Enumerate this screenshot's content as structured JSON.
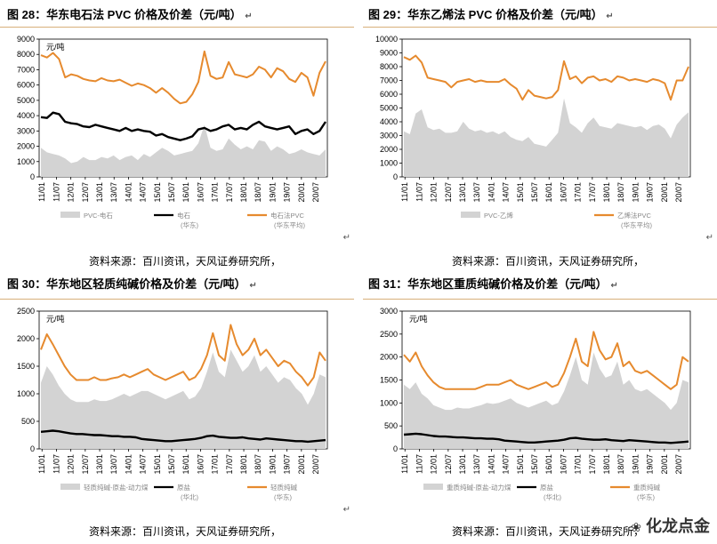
{
  "return_mark": "↵",
  "watermark": "化龙点金",
  "chart_data": [
    {
      "type": "line",
      "title": "图 28：华东电石法 PVC 价格及价差（元/吨）",
      "unit_label": "元/吨",
      "source": "资料来源：百川资讯，天风证券研究所，",
      "ylim": [
        0,
        9000
      ],
      "yticks": [
        0,
        1000,
        2000,
        3000,
        4000,
        5000,
        6000,
        7000,
        8000,
        9000
      ],
      "xticks": [
        "11/01",
        "11/07",
        "12/01",
        "12/07",
        "13/01",
        "13/07",
        "14/01",
        "14/07",
        "15/01",
        "15/07",
        "16/01",
        "16/07",
        "17/01",
        "17/07",
        "18/01",
        "18/07",
        "19/01",
        "19/07",
        "20/01",
        "20/07"
      ],
      "legend": [
        {
          "name": "PVC-电石",
          "sub": "",
          "kind": "area",
          "color": "#d3d3d3"
        },
        {
          "name": "电石",
          "sub": "(华东)",
          "kind": "line",
          "color": "#000000"
        },
        {
          "name": "电石法PVC",
          "sub": "(华东平均)",
          "kind": "line",
          "color": "#e68a2e"
        }
      ],
      "series": [
        {
          "kind": "line",
          "color": "#e68a2e",
          "values": [
            7950,
            7800,
            8100,
            7700,
            6500,
            6700,
            6600,
            6400,
            6300,
            6250,
            6450,
            6300,
            6250,
            6350,
            6150,
            5950,
            6100,
            6000,
            5800,
            5500,
            5800,
            5500,
            5100,
            4800,
            4900,
            5400,
            6200,
            8200,
            6600,
            6400,
            6500,
            7500,
            6700,
            6600,
            6500,
            6700,
            7200,
            7000,
            6500,
            7100,
            6900,
            6400,
            6200,
            6800,
            6500,
            5300,
            6800,
            7550
          ]
        },
        {
          "kind": "line",
          "color": "#000000",
          "values": [
            3900,
            3850,
            4200,
            4100,
            3600,
            3500,
            3450,
            3300,
            3250,
            3400,
            3300,
            3200,
            3100,
            3000,
            3200,
            3000,
            3100,
            3000,
            2950,
            2700,
            2800,
            2600,
            2500,
            2400,
            2500,
            2650,
            3100,
            3200,
            3000,
            3100,
            3300,
            3400,
            3100,
            3200,
            3100,
            3400,
            3600,
            3300,
            3200,
            3100,
            3200,
            3300,
            2800,
            3000,
            3100,
            2800,
            3000,
            3600
          ]
        },
        {
          "kind": "area",
          "color": "#d3d3d3",
          "values": [
            1900,
            1600,
            1500,
            1400,
            1200,
            900,
            1000,
            1300,
            1100,
            1100,
            1300,
            1200,
            1400,
            1100,
            1300,
            1400,
            1100,
            1500,
            1300,
            1600,
            1900,
            1700,
            1400,
            1500,
            1600,
            1700,
            2200,
            3400,
            1900,
            1700,
            1800,
            2500,
            2100,
            1800,
            2000,
            1800,
            2400,
            2300,
            1700,
            2000,
            1800,
            1500,
            1600,
            1800,
            1600,
            1500,
            1400,
            1800
          ]
        }
      ]
    },
    {
      "type": "line",
      "title": "图 29：华东乙烯法 PVC 价格及价差（元/吨）",
      "unit_label": "",
      "source": "资料来源：百川资讯，天风证券研究所，",
      "ylim": [
        0,
        10000
      ],
      "yticks": [
        0,
        1000,
        2000,
        3000,
        4000,
        5000,
        6000,
        7000,
        8000,
        9000,
        10000
      ],
      "xticks": [
        "11/01",
        "11/07",
        "12/01",
        "12/07",
        "13/01",
        "13/07",
        "14/01",
        "14/07",
        "15/01",
        "15/07",
        "16/01",
        "16/07",
        "17/01",
        "17/07",
        "18/01",
        "18/07",
        "19/01",
        "19/07",
        "20/01",
        "20/07"
      ],
      "legend": [
        {
          "name": "PVC-乙烯",
          "sub": "",
          "kind": "area",
          "color": "#d3d3d3"
        },
        {
          "name": "乙烯法PVC",
          "sub": "(华东平均)",
          "kind": "line",
          "color": "#e68a2e"
        }
      ],
      "series": [
        {
          "kind": "line",
          "color": "#e68a2e",
          "values": [
            8700,
            8500,
            8800,
            8300,
            7200,
            7100,
            7000,
            6900,
            6500,
            6900,
            7000,
            7100,
            6900,
            7000,
            6900,
            6900,
            6900,
            7100,
            6700,
            6400,
            5600,
            6300,
            5900,
            5800,
            5700,
            5800,
            6300,
            8400,
            7100,
            7300,
            6800,
            7200,
            7300,
            7000,
            7100,
            6900,
            7300,
            7200,
            7000,
            7100,
            7000,
            6900,
            7100,
            7000,
            6800,
            5600,
            7000,
            7000,
            8000
          ]
        },
        {
          "kind": "area",
          "color": "#d3d3d3",
          "values": [
            3300,
            3100,
            4600,
            4900,
            3600,
            3400,
            3500,
            3200,
            3200,
            3300,
            4000,
            3500,
            3300,
            3400,
            3200,
            3300,
            3100,
            3300,
            2900,
            2700,
            2600,
            2900,
            2400,
            2300,
            2200,
            2700,
            3200,
            5700,
            3900,
            3600,
            3200,
            3900,
            4300,
            3700,
            3600,
            3500,
            3900,
            3800,
            3700,
            3600,
            3700,
            3400,
            3700,
            3800,
            3500,
            2800,
            3800,
            4300,
            4700
          ]
        }
      ]
    },
    {
      "type": "line",
      "title": "图 30：华东地区轻质纯碱价格及价差（元/吨）",
      "unit_label": "元/吨",
      "source": "资料来源：百川资讯，天风证券研究所，",
      "ylim": [
        0,
        2500
      ],
      "yticks": [
        0,
        500,
        1000,
        1500,
        2000,
        2500
      ],
      "xticks": [
        "11/01",
        "11/07",
        "12/01",
        "12/07",
        "13/01",
        "13/07",
        "14/01",
        "14/07",
        "15/01",
        "15/07",
        "16/01",
        "16/07",
        "17/01",
        "17/07",
        "18/01",
        "18/07",
        "19/01",
        "19/07",
        "20/01",
        "20/07"
      ],
      "legend": [
        {
          "name": "轻质纯碱-原盐-动力煤",
          "sub": "",
          "kind": "area",
          "color": "#d3d3d3"
        },
        {
          "name": "原盐",
          "sub": "(华北)",
          "kind": "line",
          "color": "#000000"
        },
        {
          "name": "轻质纯碱",
          "sub": "(华东)",
          "kind": "line",
          "color": "#e68a2e"
        }
      ],
      "series": [
        {
          "kind": "line",
          "color": "#e68a2e",
          "values": [
            1800,
            2080,
            1900,
            1700,
            1500,
            1350,
            1250,
            1250,
            1250,
            1300,
            1250,
            1250,
            1280,
            1300,
            1350,
            1300,
            1350,
            1400,
            1450,
            1350,
            1300,
            1250,
            1300,
            1350,
            1400,
            1250,
            1300,
            1450,
            1700,
            2100,
            1700,
            1600,
            2250,
            1900,
            1700,
            1800,
            2000,
            1700,
            1800,
            1650,
            1500,
            1600,
            1550,
            1400,
            1300,
            1150,
            1300,
            1750,
            1600
          ]
        },
        {
          "kind": "line",
          "color": "#000000",
          "values": [
            310,
            320,
            330,
            320,
            300,
            280,
            270,
            270,
            260,
            250,
            250,
            240,
            230,
            230,
            220,
            220,
            210,
            180,
            170,
            160,
            150,
            140,
            140,
            150,
            160,
            170,
            180,
            200,
            230,
            240,
            220,
            210,
            200,
            200,
            210,
            190,
            180,
            170,
            190,
            180,
            170,
            160,
            150,
            140,
            140,
            130,
            140,
            150,
            160
          ]
        },
        {
          "kind": "area",
          "color": "#d3d3d3",
          "values": [
            1200,
            1500,
            1350,
            1150,
            1000,
            900,
            850,
            850,
            850,
            900,
            870,
            870,
            900,
            950,
            1000,
            950,
            1000,
            1050,
            1050,
            1000,
            950,
            900,
            950,
            1000,
            1050,
            900,
            950,
            1100,
            1400,
            1750,
            1400,
            1300,
            1800,
            1600,
            1400,
            1500,
            1700,
            1400,
            1500,
            1350,
            1200,
            1300,
            1250,
            1100,
            1000,
            800,
            1000,
            1350,
            1300
          ]
        }
      ]
    },
    {
      "type": "line",
      "title": "图 31：华东地区重质纯碱价格及价差（元/吨）",
      "unit_label": "元/吨",
      "source": "资料来源：百川资讯，天风证券研究所，",
      "ylim": [
        0,
        3000
      ],
      "yticks": [
        0,
        500,
        1000,
        1500,
        2000,
        2500,
        3000
      ],
      "xticks": [
        "11/01",
        "11/07",
        "12/01",
        "12/07",
        "13/01",
        "13/07",
        "14/01",
        "14/07",
        "15/01",
        "15/07",
        "16/01",
        "16/07",
        "17/01",
        "17/07",
        "18/01",
        "18/07",
        "19/01",
        "19/07",
        "20/01",
        "20/07"
      ],
      "legend": [
        {
          "name": "重质纯碱-原盐-动力煤",
          "sub": "",
          "kind": "area",
          "color": "#d3d3d3"
        },
        {
          "name": "原盐",
          "sub": "(华北)",
          "kind": "line",
          "color": "#000000"
        },
        {
          "name": "重质纯碱",
          "sub": "(华东)",
          "kind": "line",
          "color": "#e68a2e"
        }
      ],
      "series": [
        {
          "kind": "line",
          "color": "#e68a2e",
          "values": [
            2050,
            1900,
            2100,
            1800,
            1600,
            1450,
            1350,
            1300,
            1300,
            1300,
            1300,
            1300,
            1300,
            1350,
            1400,
            1400,
            1400,
            1450,
            1500,
            1400,
            1350,
            1300,
            1350,
            1400,
            1450,
            1350,
            1400,
            1650,
            2000,
            2400,
            1900,
            1800,
            2550,
            2150,
            1950,
            2000,
            2300,
            1800,
            1900,
            1700,
            1650,
            1700,
            1600,
            1500,
            1400,
            1300,
            1400,
            2000,
            1900
          ]
        },
        {
          "kind": "line",
          "color": "#000000",
          "values": [
            310,
            320,
            330,
            320,
            300,
            280,
            270,
            270,
            260,
            250,
            250,
            240,
            230,
            230,
            220,
            220,
            210,
            180,
            170,
            160,
            150,
            140,
            140,
            150,
            160,
            170,
            180,
            200,
            230,
            240,
            220,
            210,
            200,
            200,
            210,
            190,
            180,
            170,
            190,
            180,
            170,
            160,
            150,
            140,
            140,
            130,
            140,
            150,
            160
          ]
        },
        {
          "kind": "area",
          "color": "#d3d3d3",
          "values": [
            1400,
            1300,
            1450,
            1200,
            1100,
            950,
            900,
            850,
            850,
            900,
            880,
            880,
            920,
            950,
            1000,
            980,
            1000,
            1050,
            1100,
            1000,
            950,
            900,
            950,
            1000,
            1050,
            950,
            1000,
            1250,
            1600,
            2000,
            1500,
            1400,
            2100,
            1750,
            1550,
            1600,
            1900,
            1400,
            1500,
            1300,
            1250,
            1300,
            1200,
            1100,
            1000,
            850,
            1000,
            1500,
            1450
          ]
        }
      ]
    }
  ]
}
